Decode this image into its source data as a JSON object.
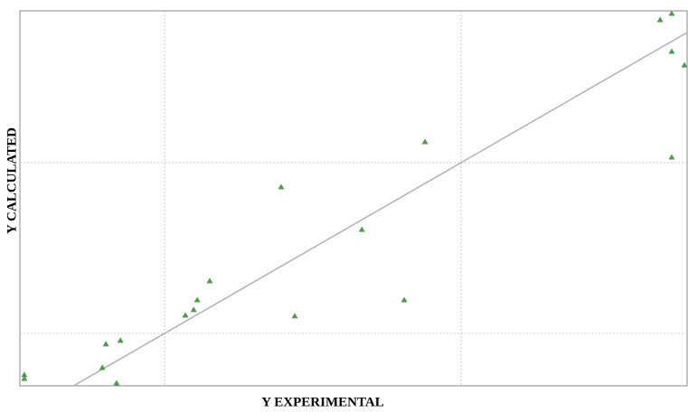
{
  "chart_data": {
    "type": "scatter",
    "x_label": "Y EXPERIMENTAL",
    "y_label": "Y CALCULATED",
    "xlim": [
      0.512,
      2.762
    ],
    "ylim": [
      0.693,
      2.889
    ],
    "xticks": [
      1,
      2
    ],
    "yticks": [
      1,
      2
    ],
    "grid": true,
    "diagonal": true,
    "diagonal_color": "#b4aebd",
    "series": [
      {
        "color": "#4f9a4a",
        "x": [
          0.527,
          0.527,
          0.79,
          0.802,
          0.838,
          0.851,
          1.07,
          1.098,
          1.11,
          1.152,
          1.393,
          1.439,
          1.665,
          1.808,
          1.878,
          2.671,
          2.71,
          2.71,
          2.71,
          2.753
        ],
        "values": [
          0.757,
          0.735,
          0.799,
          0.937,
          0.709,
          0.958,
          1.106,
          1.138,
          1.196,
          1.307,
          1.857,
          1.101,
          1.608,
          1.196,
          2.122,
          2.836,
          2.873,
          2.651,
          2.032,
          2.571
        ]
      }
    ]
  }
}
